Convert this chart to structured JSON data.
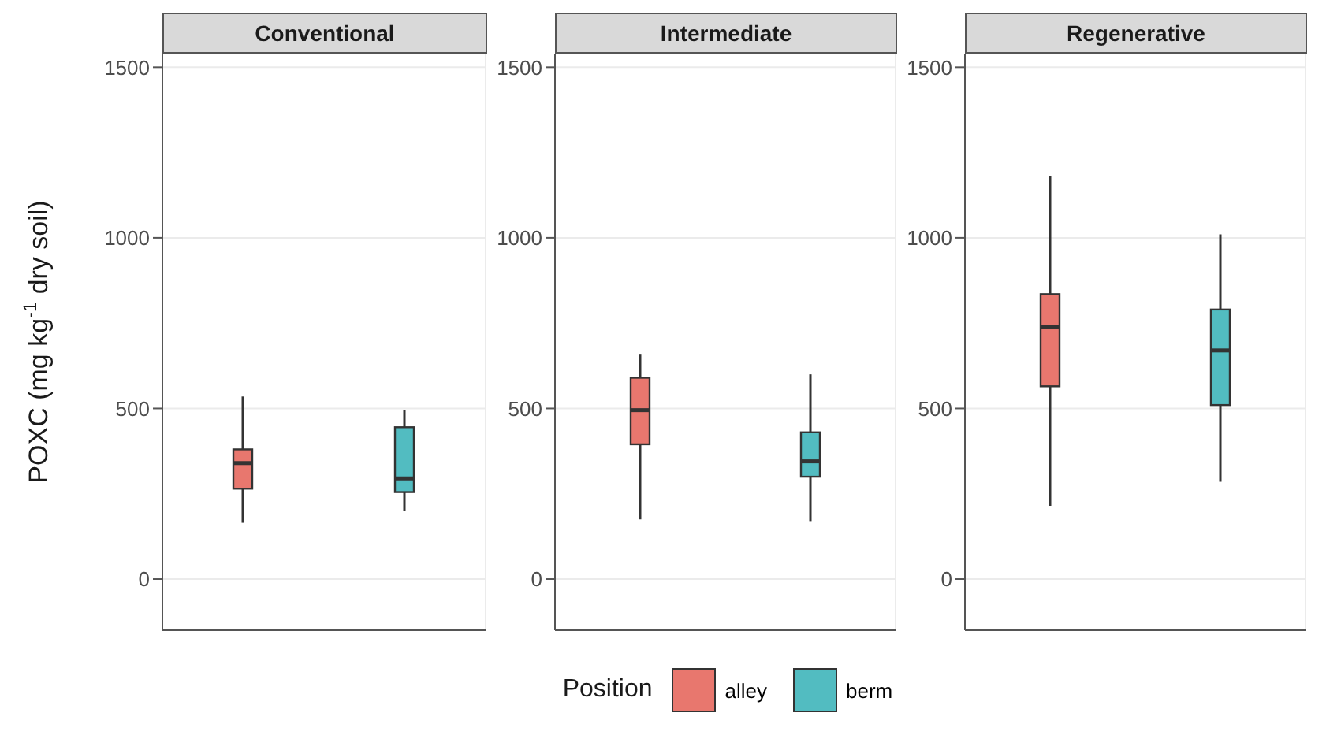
{
  "chart_data": [
    {
      "type": "box",
      "title": "Conventional",
      "ylabel": "POXC (mg kg$^{-1}$ dry soil)",
      "categories": [
        null,
        null
      ],
      "ylim": [
        -150,
        1540
      ],
      "yticks": [
        0,
        500,
        1000,
        1500
      ],
      "grid": true,
      "tick_labels": "y",
      "legend": "bottom",
      "legend_title": "Position",
      "series": [
        {
          "name": "alley",
          "color": "#e8776e",
          "boxes": [
            {
              "low": 165,
              "q1": 265,
              "median": 340,
              "q3": 380,
              "high": 535
            },
            null
          ]
        },
        {
          "name": "berm",
          "color": "#52bcc1",
          "boxes": [
            null,
            {
              "low": 200,
              "q1": 255,
              "median": 295,
              "q3": 445,
              "high": 495
            }
          ]
        }
      ]
    },
    {
      "type": "box",
      "title": "Intermediate",
      "categories": [
        null,
        null
      ],
      "ylim": [
        -150,
        1540
      ],
      "yticks": [
        0,
        500,
        1000,
        1500
      ],
      "grid": true,
      "tick_labels": "y",
      "series": [
        {
          "color": "#e8776e",
          "boxes": [
            {
              "low": 175,
              "q1": 395,
              "median": 495,
              "q3": 590,
              "high": 660
            },
            null
          ]
        },
        {
          "color": "#52bcc1",
          "boxes": [
            null,
            {
              "low": 170,
              "q1": 300,
              "median": 345,
              "q3": 430,
              "high": 600
            }
          ]
        }
      ]
    },
    {
      "type": "box",
      "title": "Regenerative",
      "categories": [
        null,
        null
      ],
      "ylim": [
        -150,
        1540
      ],
      "yticks": [
        0,
        500,
        1000,
        1500
      ],
      "grid": true,
      "tick_labels": "y",
      "series": [
        {
          "color": "#e8776e",
          "boxes": [
            {
              "low": 215,
              "q1": 565,
              "median": 740,
              "q3": 835,
              "high": 1180
            },
            null
          ]
        },
        {
          "color": "#52bcc1",
          "boxes": [
            null,
            {
              "low": 285,
              "q1": 510,
              "median": 670,
              "q3": 790,
              "high": 1010
            }
          ]
        }
      ]
    }
  ]
}
